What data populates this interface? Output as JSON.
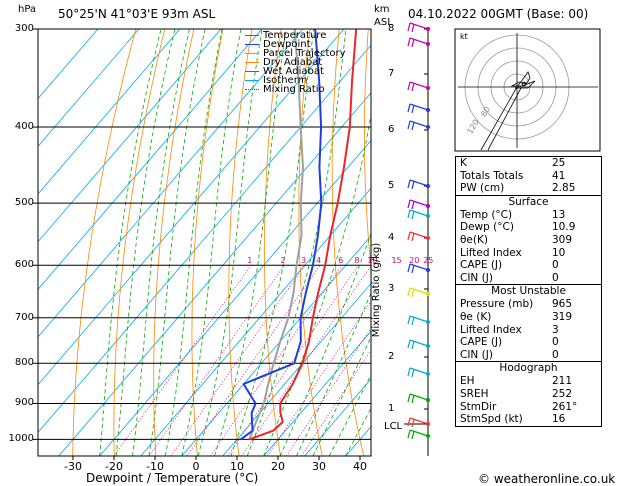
{
  "header": {
    "hpa_unit": "hPa",
    "location": "50°25'N  41°03'E  93m  ASL",
    "km_unit": "km",
    "asl_unit": "ASL",
    "datetime": "04.10.2022  00GMT  (Base: 00)"
  },
  "legend": [
    {
      "label": "Temperature",
      "color": "#e8262b"
    },
    {
      "label": "Dewpoint",
      "color": "#1f3fd8"
    },
    {
      "label": "Parcel Trajectory",
      "color": "#999999"
    },
    {
      "label": "Dry Adiabat",
      "color": "#ff8800"
    },
    {
      "label": "Wet Adiabat",
      "color": "#00aa00"
    },
    {
      "label": "Isotherm",
      "color": "#00aaee"
    },
    {
      "label": "Mixing Ratio",
      "color": "#e0007a"
    }
  ],
  "chart_data": {
    "type": "skew-t",
    "xlabel": "Dewpoint / Temperature (°C)",
    "ylabel_right": "Mixing Ratio (g/kg)",
    "pressure_ticks": [
      "300",
      "400",
      "500",
      "600",
      "700",
      "800",
      "900",
      "1000"
    ],
    "temperature_ticks": [
      "-30",
      "-20",
      "-10",
      "0",
      "10",
      "20",
      "30",
      "40"
    ],
    "km_ticks": [
      "8",
      "7",
      "6",
      "5",
      "4",
      "3",
      "2",
      "1"
    ],
    "mixing_ratio_labels": [
      "1",
      "2",
      "3",
      "4",
      "6",
      "8",
      "10",
      "15",
      "20",
      "25"
    ],
    "lcl_label": "LCL",
    "temperature": {
      "pressure": [
        1000,
        975,
        950,
        925,
        900,
        850,
        800,
        750,
        700,
        650,
        600,
        550,
        500,
        450,
        400,
        350,
        300
      ],
      "values": [
        13,
        17,
        17.5,
        15,
        13,
        12,
        10,
        7,
        3,
        -1,
        -5,
        -10,
        -15,
        -21,
        -28,
        -37,
        -47
      ]
    },
    "dewpoint": {
      "pressure": [
        1000,
        975,
        950,
        925,
        900,
        850,
        800,
        750,
        700,
        650,
        600,
        550,
        500,
        450,
        400,
        350,
        300
      ],
      "values": [
        10.9,
        12,
        10,
        8,
        7,
        0,
        8,
        5,
        0,
        -4,
        -8,
        -13,
        -19,
        -27,
        -35,
        -45,
        -57
      ]
    },
    "parcel": {
      "pressure": [
        1000,
        950,
        900,
        850,
        800,
        750,
        700,
        650,
        600,
        550,
        500,
        450,
        400,
        350,
        300
      ],
      "values": [
        13,
        11,
        9,
        6,
        3,
        0,
        -3,
        -7,
        -12,
        -17,
        -24,
        -31,
        -40,
        -50,
        -62
      ]
    }
  },
  "hodograph": {
    "unit_label": "kt",
    "ring_labels": [
      "120",
      "80"
    ]
  },
  "indices": [
    {
      "k": "K",
      "v": "25"
    },
    {
      "k": "Totals Totals",
      "v": "41"
    },
    {
      "k": "PW (cm)",
      "v": "2.85"
    }
  ],
  "surface": {
    "title": "Surface",
    "rows": [
      {
        "k": "Temp (°C)",
        "v": "13"
      },
      {
        "k": "Dewp (°C)",
        "v": "10.9"
      },
      {
        "k": "θe(K)",
        "v": "309"
      },
      {
        "k": "Lifted Index",
        "v": "10"
      },
      {
        "k": "CAPE (J)",
        "v": "0"
      },
      {
        "k": "CIN (J)",
        "v": "0"
      }
    ]
  },
  "most_unstable": {
    "title": "Most Unstable",
    "rows": [
      {
        "k": "Pressure (mb)",
        "v": "965"
      },
      {
        "k": "θe (K)",
        "v": "319"
      },
      {
        "k": "Lifted Index",
        "v": "3"
      },
      {
        "k": "CAPE (J)",
        "v": "0"
      },
      {
        "k": "CIN (J)",
        "v": "0"
      }
    ]
  },
  "hodograph_table": {
    "title": "Hodograph",
    "rows": [
      {
        "k": "EH",
        "v": "211"
      },
      {
        "k": "SREH",
        "v": "252"
      },
      {
        "k": "StmDir",
        "v": "261°"
      },
      {
        "k": "StmSpd (kt)",
        "v": "16"
      }
    ]
  },
  "footer": {
    "credit": "© weatheronline.co.uk"
  }
}
